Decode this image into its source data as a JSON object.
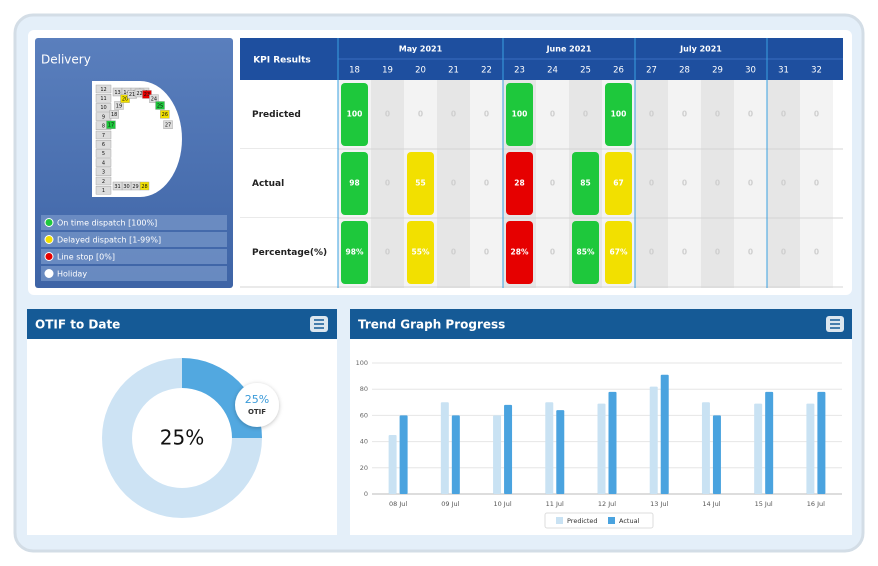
{
  "delivery": {
    "title": "Delivery",
    "days": [
      1,
      2,
      3,
      4,
      5,
      6,
      7,
      8,
      9,
      10,
      11,
      12,
      13,
      14,
      15,
      16,
      17,
      18,
      19,
      20,
      21,
      22,
      23,
      24,
      25,
      26,
      27,
      28,
      29,
      30,
      31
    ],
    "day_colors": [
      "#dcdcdc",
      "#dcdcdc",
      "#dcdcdc",
      "#dcdcdc",
      "#dcdcdc",
      "#dcdcdc",
      "#dcdcdc",
      "#dcdcdc",
      "#dcdcdc",
      "#dcdcdc",
      "#dcdcdc",
      "#dcdcdc",
      "#dcdcdc",
      "#dcdcdc",
      "#dcdcdc",
      "#dcdcdc",
      "#1ec83c",
      "#dcdcdc",
      "#dcdcdc",
      "#f2e000",
      "#dcdcdc",
      "#dcdcdc",
      "#e60000",
      "#dcdcdc",
      "#1ec83c",
      "#f2e000",
      "#dcdcdc",
      "#f2e000",
      "#dcdcdc",
      "#dcdcdc",
      "#dcdcdc"
    ],
    "legend": [
      {
        "label": "On time dispatch [100%]",
        "color": "#1ec83c"
      },
      {
        "label": "Delayed dispatch [1-99%]",
        "color": "#f2e000"
      },
      {
        "label": "Line stop [0%]",
        "color": "#e60000"
      },
      {
        "label": "Holiday",
        "color": "#ffffff"
      }
    ]
  },
  "kpi": {
    "title": "KPI Results",
    "months": [
      {
        "label": "May 2021",
        "weeks": [
          18,
          19,
          20,
          21,
          22
        ]
      },
      {
        "label": "June 2021",
        "weeks": [
          23,
          24,
          25,
          26
        ]
      },
      {
        "label": "July 2021",
        "weeks": [
          27,
          28,
          29,
          30
        ]
      },
      {
        "weeks": [
          31,
          32
        ]
      }
    ],
    "rows": [
      {
        "label": "Predicted",
        "cells": [
          100,
          0,
          0,
          0,
          0,
          100,
          0,
          0,
          100,
          0,
          0,
          0,
          0,
          0,
          0
        ],
        "colors": [
          "#1ec83c",
          null,
          null,
          null,
          null,
          "#1ec83c",
          null,
          null,
          "#1ec83c",
          null,
          null,
          null,
          null,
          null,
          null
        ]
      },
      {
        "label": "Actual",
        "cells": [
          98,
          0,
          55,
          0,
          0,
          28,
          0,
          85,
          67,
          0,
          0,
          0,
          0,
          0,
          0
        ],
        "colors": [
          "#1ec83c",
          null,
          "#f2e000",
          null,
          null,
          "#e60000",
          null,
          "#1ec83c",
          "#f2e000",
          null,
          null,
          null,
          null,
          null,
          null
        ]
      },
      {
        "label": "Percentage(%)",
        "cells": [
          "98%",
          0,
          "55%",
          0,
          0,
          "28%",
          0,
          "85%",
          "67%",
          0,
          0,
          0,
          0,
          0,
          0
        ],
        "colors": [
          "#1ec83c",
          null,
          "#f2e000",
          null,
          null,
          "#e60000",
          null,
          "#1ec83c",
          "#f2e000",
          null,
          null,
          null,
          null,
          null,
          null
        ]
      }
    ]
  },
  "chart_data": [
    {
      "type": "donut",
      "title": "OTIF to Date",
      "values": [
        25,
        75
      ],
      "value_labels": [
        "25%"
      ],
      "colors": [
        "#52a8e0",
        "#cde3f4"
      ],
      "callout_label": "OTIF"
    },
    {
      "type": "bar",
      "title": "Trend Graph Progress",
      "categories": [
        "08 Jul",
        "09 Jul",
        "10 Jul",
        "11 Jul",
        "12 Jul",
        "13 Jul",
        "14 Jul",
        "15 Jul",
        "16 Jul"
      ],
      "series": [
        {
          "name": "Predicted",
          "color": "#c9e2f3",
          "values": [
            45,
            70,
            60,
            70,
            69,
            82,
            70,
            69,
            69
          ]
        },
        {
          "name": "Actual",
          "color": "#4aa3df",
          "values": [
            60,
            60,
            68,
            64,
            78,
            91,
            60,
            78,
            78
          ]
        }
      ],
      "ylim": [
        0,
        100
      ],
      "yticks": [
        0,
        20,
        40,
        60,
        80,
        100
      ],
      "grid": true
    }
  ]
}
